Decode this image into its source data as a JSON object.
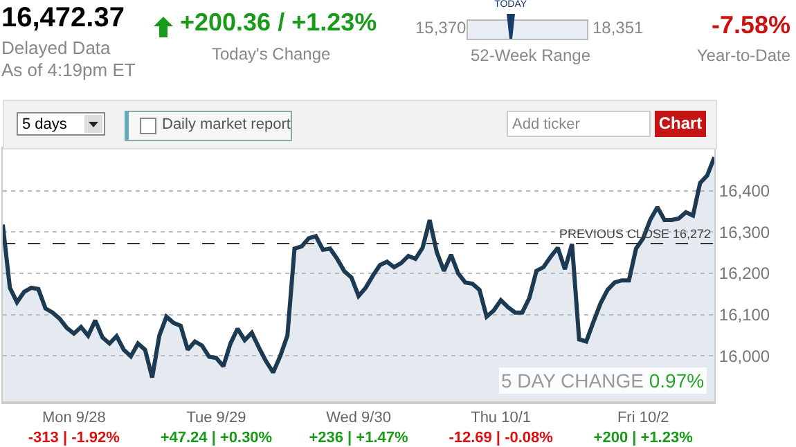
{
  "chart_data": {
    "type": "area",
    "categories": [
      null,
      null,
      null,
      null,
      null,
      null,
      null,
      null,
      null,
      null,
      "Mon 9/28\n-313 | -1.92%",
      null,
      null,
      null,
      null,
      null,
      null,
      null,
      null,
      null,
      null,
      null,
      null,
      null,
      null,
      null,
      null,
      null,
      null,
      null,
      "Tue 9/29\n+47.24 | +0.30%",
      null,
      null,
      null,
      null,
      null,
      null,
      null,
      null,
      null,
      null,
      null,
      null,
      null,
      null,
      null,
      null,
      null,
      null,
      null,
      "Wed 9/30\n+236 | +1.47%",
      null,
      null,
      null,
      null,
      null,
      null,
      null,
      null,
      null,
      null,
      null,
      null,
      null,
      null,
      null,
      null,
      null,
      null,
      null,
      "Thu 10/1\n-12.69 | -0.08%",
      null,
      null,
      null,
      null,
      null,
      null,
      null,
      null,
      null,
      null,
      null,
      null,
      null,
      null,
      null,
      null,
      null,
      null,
      null,
      "Fri 10/2\n+200 | +1.23%",
      null,
      null,
      null,
      null,
      null,
      null,
      null,
      null,
      null,
      null
    ],
    "series": [
      {
        "color": "#1c3a52",
        "values": [
          16318,
          16165,
          16130,
          16155,
          16165,
          16162,
          16115,
          16105,
          16090,
          16068,
          16054,
          16070,
          16049,
          16086,
          16045,
          16030,
          16048,
          16015,
          15999,
          16030,
          16015,
          15948,
          16049,
          16095,
          16080,
          16073,
          16015,
          16035,
          16025,
          15998,
          15995,
          15975,
          16030,
          16066,
          16038,
          16056,
          16020,
          15987,
          15960,
          16000,
          16049,
          16260,
          16265,
          16285,
          16290,
          16257,
          16260,
          16235,
          16205,
          16190,
          16145,
          16165,
          16194,
          16220,
          16228,
          16215,
          16225,
          16242,
          16235,
          16262,
          16329,
          16251,
          16206,
          16245,
          16200,
          16178,
          16175,
          16160,
          16095,
          16110,
          16135,
          16118,
          16105,
          16105,
          16140,
          16206,
          16215,
          16240,
          16262,
          16210,
          16271,
          16040,
          16035,
          16082,
          16127,
          16160,
          16178,
          16183,
          16183,
          16260,
          16285,
          16330,
          16360,
          16329,
          16329,
          16333,
          16348,
          16340,
          16419,
          16437,
          16481
        ]
      }
    ],
    "ylim": [
      15890,
      16500
    ],
    "yticks": [
      {
        "value": 16000,
        "label": "16,000"
      },
      {
        "value": 16100,
        "label": "16,100"
      },
      {
        "value": 16200,
        "label": "16,200"
      },
      {
        "value": 16300,
        "label": "16,300"
      },
      {
        "value": 16400,
        "label": "16,400"
      }
    ],
    "grid": "y",
    "marker": "none",
    "line_style": "solid",
    "ref_lines": [
      {
        "axis": "y",
        "value": 16272,
        "label": "PREVIOUS CLOSE 16,272",
        "color": "#333333",
        "line_style": "dashed"
      }
    ],
    "annotations": [
      "16,472.37",
      "Delayed Data",
      "As of 4:19pm ET",
      "+200.36 / +1.23%",
      "Today's Change",
      "15,370",
      "TODAY",
      "18,351",
      "52-Week Range",
      "-7.58%",
      "Year-to-Date",
      "5 days",
      "Daily market report",
      "Add ticker",
      "Chart",
      "5 DAY CHANGE",
      "0.97%"
    ]
  }
}
